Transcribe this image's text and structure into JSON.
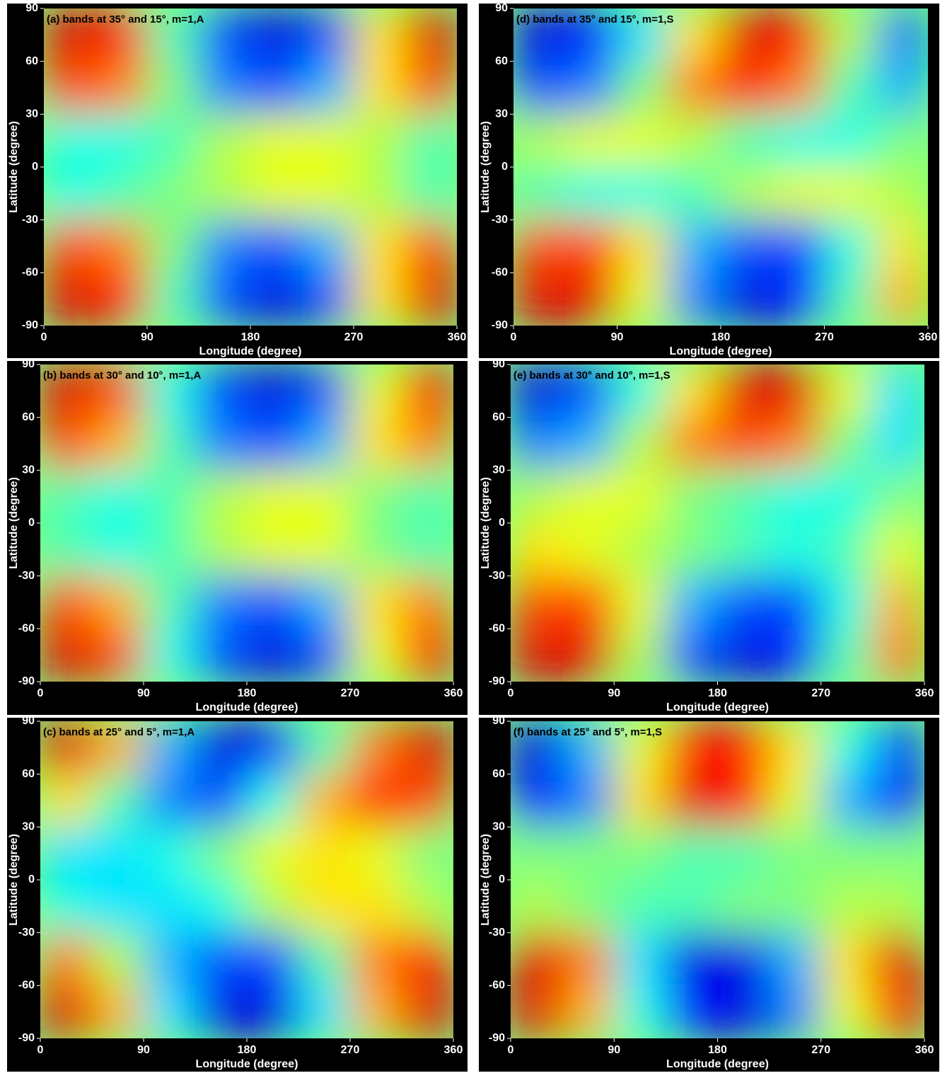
{
  "chart_data": [
    {
      "type": "heatmap",
      "title": "(a) bands at 35° and 15°, m=1,A",
      "xlabel": "Longitude (degree)",
      "ylabel": "Latitude (degree)",
      "xlim": [
        0,
        360
      ],
      "ylim": [
        -90,
        90
      ],
      "xticks": [
        0,
        90,
        180,
        270,
        360
      ],
      "yticks": [
        -90,
        -60,
        -30,
        0,
        30,
        60,
        90
      ],
      "colormap": "jet",
      "clim": [
        -1,
        1
      ],
      "x": [
        22.5,
        67.5,
        112.5,
        157.5,
        202.5,
        247.5,
        292.5,
        337.5
      ],
      "y": [
        75,
        45,
        15,
        -15,
        -45,
        -75
      ],
      "z": [
        [
          0.8,
          0.7,
          -0.1,
          -0.6,
          -0.8,
          -0.6,
          0.3,
          0.8
        ],
        [
          0.6,
          0.5,
          0,
          -0.5,
          -0.6,
          -0.4,
          0.3,
          0.6
        ],
        [
          -0.2,
          -0.2,
          -0.1,
          0.1,
          0.2,
          0.2,
          0.1,
          -0.1
        ],
        [
          -0.2,
          -0.1,
          0,
          0.1,
          0.2,
          0.2,
          0.1,
          -0.1
        ],
        [
          0.6,
          0.5,
          0,
          -0.5,
          -0.6,
          -0.4,
          0.3,
          0.6
        ],
        [
          0.8,
          0.7,
          -0.1,
          -0.6,
          -0.8,
          -0.6,
          0.3,
          0.8
        ]
      ]
    },
    {
      "type": "heatmap",
      "title": "(b) bands at 30° and 10°, m=1,A",
      "xlabel": "Longitude (degree)",
      "ylabel": "Latitude (degree)",
      "xlim": [
        0,
        360
      ],
      "ylim": [
        -90,
        90
      ],
      "xticks": [
        0,
        90,
        180,
        270,
        360
      ],
      "yticks": [
        -90,
        -60,
        -30,
        0,
        30,
        60,
        90
      ],
      "colormap": "jet",
      "clim": [
        -1,
        1
      ],
      "x": [
        22.5,
        67.5,
        112.5,
        157.5,
        202.5,
        247.5,
        292.5,
        337.5
      ],
      "y": [
        75,
        45,
        15,
        -15,
        -45,
        -75
      ],
      "z": [
        [
          0.8,
          0.6,
          -0.2,
          -0.6,
          -0.8,
          -0.6,
          0.2,
          0.7
        ],
        [
          0.6,
          0.4,
          -0.1,
          -0.5,
          -0.6,
          -0.4,
          0.3,
          0.5
        ],
        [
          -0.1,
          -0.2,
          -0.1,
          0.1,
          0.2,
          0.2,
          0,
          -0.1
        ],
        [
          -0.1,
          -0.2,
          -0.1,
          0.1,
          0.2,
          0.2,
          0,
          -0.1
        ],
        [
          0.6,
          0.4,
          -0.1,
          -0.5,
          -0.6,
          -0.4,
          0.3,
          0.5
        ],
        [
          0.8,
          0.6,
          -0.2,
          -0.6,
          -0.8,
          -0.6,
          0.2,
          0.7
        ]
      ]
    },
    {
      "type": "heatmap",
      "title": "(c) bands at 25° and 5°, m=1,A",
      "xlabel": "Longitude (degree)",
      "ylabel": "Latitude (degree)",
      "xlim": [
        0,
        360
      ],
      "ylim": [
        -90,
        90
      ],
      "xticks": [
        0,
        90,
        180,
        270,
        360
      ],
      "yticks": [
        -90,
        -60,
        -30,
        0,
        30,
        60,
        90
      ],
      "colormap": "jet",
      "clim": [
        -1,
        1
      ],
      "x": [
        22.5,
        67.5,
        112.5,
        157.5,
        202.5,
        247.5,
        292.5,
        337.5
      ],
      "y": [
        75,
        45,
        15,
        -15,
        -45,
        -75
      ],
      "z": [
        [
          0.8,
          0.4,
          -0.4,
          -0.8,
          -0.7,
          -0.1,
          0.5,
          0.8
        ],
        [
          0.3,
          -0.1,
          -0.5,
          -0.6,
          -0.2,
          0.4,
          0.7,
          0.6
        ],
        [
          -0.3,
          -0.3,
          -0.2,
          0,
          0.2,
          0.3,
          0.2,
          0
        ],
        [
          -0.2,
          -0.3,
          -0.3,
          -0.2,
          0.1,
          0.3,
          0.3,
          0.1
        ],
        [
          0.5,
          0.1,
          -0.4,
          -0.6,
          -0.6,
          -0.1,
          0.5,
          0.7
        ],
        [
          0.8,
          0.4,
          -0.3,
          -0.8,
          -0.8,
          -0.3,
          0.4,
          0.8
        ]
      ]
    },
    {
      "type": "heatmap",
      "title": "(d) bands at 35° and 15°, m=1,S",
      "xlabel": "Longitude (degree)",
      "ylabel": "Latitude (degree)",
      "xlim": [
        0,
        360
      ],
      "ylim": [
        -90,
        90
      ],
      "xticks": [
        0,
        90,
        180,
        270,
        360
      ],
      "yticks": [
        -90,
        -60,
        -30,
        0,
        30,
        60,
        90
      ],
      "colormap": "jet",
      "clim": [
        -1,
        1
      ],
      "x": [
        22.5,
        67.5,
        112.5,
        157.5,
        202.5,
        247.5,
        292.5,
        337.5
      ],
      "y": [
        75,
        45,
        15,
        -15,
        -45,
        -75
      ],
      "z": [
        [
          -0.8,
          -0.7,
          -0.3,
          0.3,
          0.8,
          0.7,
          0.1,
          -0.5
        ],
        [
          -0.6,
          -0.5,
          0,
          0.5,
          0.7,
          0.5,
          -0.1,
          -0.4
        ],
        [
          0.1,
          0.2,
          0.2,
          0.1,
          -0.1,
          -0.2,
          -0.2,
          0
        ],
        [
          -0.1,
          -0.2,
          -0.2,
          -0.1,
          0.1,
          0.2,
          0.2,
          0.1
        ],
        [
          0.6,
          0.6,
          0.3,
          -0.4,
          -0.6,
          -0.6,
          -0.2,
          0.3
        ],
        [
          0.8,
          0.8,
          0.2,
          -0.5,
          -0.8,
          -0.7,
          -0.1,
          0.4
        ]
      ]
    },
    {
      "type": "heatmap",
      "title": "(e) bands at 30° and 10°, m=1,S",
      "xlabel": "Longitude (degree)",
      "ylabel": "Latitude (degree)",
      "xlim": [
        0,
        360
      ],
      "ylim": [
        -90,
        90
      ],
      "xticks": [
        0,
        90,
        180,
        270,
        360
      ],
      "yticks": [
        -90,
        -60,
        -30,
        0,
        30,
        60,
        90
      ],
      "colormap": "jet",
      "clim": [
        -1,
        1
      ],
      "x": [
        22.5,
        67.5,
        112.5,
        157.5,
        202.5,
        247.5,
        292.5,
        337.5
      ],
      "y": [
        75,
        45,
        15,
        -15,
        -45,
        -75
      ],
      "z": [
        [
          -0.8,
          -0.6,
          -0.2,
          0.3,
          0.8,
          0.8,
          0.2,
          -0.3
        ],
        [
          -0.5,
          -0.4,
          0.1,
          0.5,
          0.6,
          0.5,
          0,
          -0.3
        ],
        [
          0.1,
          0.2,
          0.2,
          0,
          -0.1,
          -0.2,
          -0.2,
          0
        ],
        [
          0.3,
          0.2,
          0.1,
          0,
          -0.1,
          -0.2,
          -0.1,
          0.2
        ],
        [
          0.6,
          0.6,
          0.2,
          -0.4,
          -0.6,
          -0.6,
          -0.2,
          0.4
        ],
        [
          0.8,
          0.8,
          0.1,
          -0.6,
          -0.8,
          -0.7,
          -0.1,
          0.5
        ]
      ]
    },
    {
      "type": "heatmap",
      "title": "(f) bands at 25° and 5°, m=1,S",
      "xlabel": "Longitude (degree)",
      "ylabel": "Latitude (degree)",
      "xlim": [
        0,
        360
      ],
      "ylim": [
        -90,
        90
      ],
      "xticks": [
        0,
        90,
        180,
        270,
        360
      ],
      "yticks": [
        -90,
        -60,
        -30,
        0,
        30,
        60,
        90
      ],
      "colormap": "jet",
      "clim": [
        -1,
        1
      ],
      "x": [
        22.5,
        67.5,
        112.5,
        157.5,
        202.5,
        247.5,
        292.5,
        337.5
      ],
      "y": [
        75,
        45,
        15,
        -15,
        -45,
        -75
      ],
      "z": [
        [
          -0.8,
          -0.4,
          0.2,
          0.7,
          0.7,
          0.3,
          -0.2,
          -0.6
        ],
        [
          -0.7,
          -0.5,
          0.3,
          0.8,
          0.7,
          0.2,
          -0.4,
          -0.7
        ],
        [
          0,
          0,
          0,
          -0.1,
          -0.1,
          0,
          0,
          0
        ],
        [
          0.1,
          0,
          -0.1,
          -0.1,
          0,
          0,
          0.1,
          0.1
        ],
        [
          0.8,
          0.5,
          -0.3,
          -0.8,
          -0.8,
          -0.4,
          0.3,
          0.8
        ],
        [
          0.8,
          0.4,
          -0.2,
          -0.7,
          -0.8,
          -0.5,
          0.2,
          0.7
        ]
      ]
    }
  ]
}
